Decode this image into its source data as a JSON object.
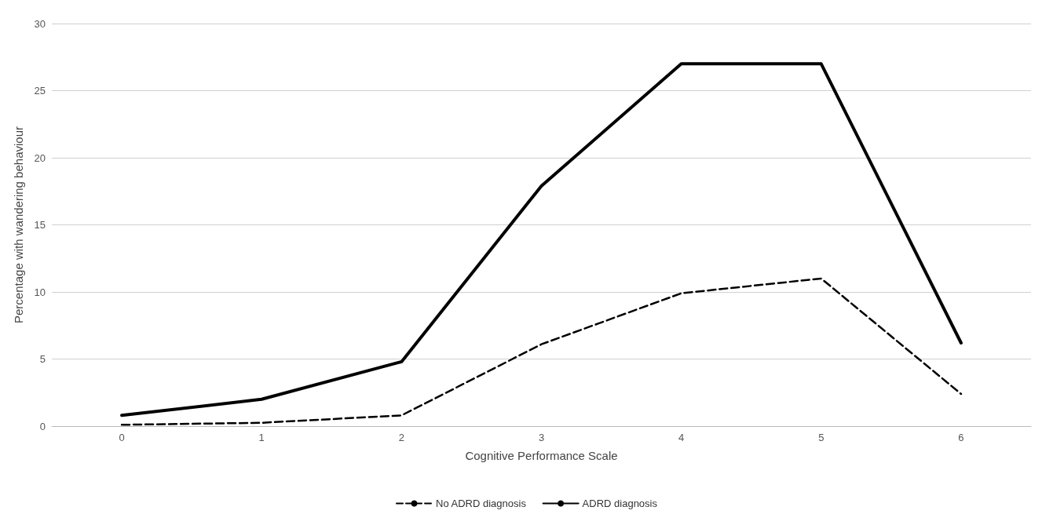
{
  "chart_data": {
    "type": "line",
    "xlabel": "Cognitive Performance Scale",
    "ylabel": "Percentage with wandering behaviour",
    "categories": [
      "0",
      "1",
      "2",
      "3",
      "4",
      "5",
      "6"
    ],
    "series": [
      {
        "name": "No ADRD diagnosis",
        "color": "#000000",
        "line_style": "dashed",
        "values": [
          0.1,
          0.25,
          0.8,
          6.1,
          9.9,
          11.0,
          2.4
        ]
      },
      {
        "name": "ADRD diagnosis",
        "color": "#000000",
        "line_style": "solid",
        "values": [
          0.8,
          2.0,
          4.8,
          17.9,
          27.0,
          27.0,
          6.2
        ]
      }
    ],
    "ylim": [
      0,
      30
    ],
    "yticks": [
      0,
      5,
      10,
      15,
      20,
      25,
      30
    ],
    "grid": "y",
    "legend": "bottom",
    "marker": "none"
  }
}
